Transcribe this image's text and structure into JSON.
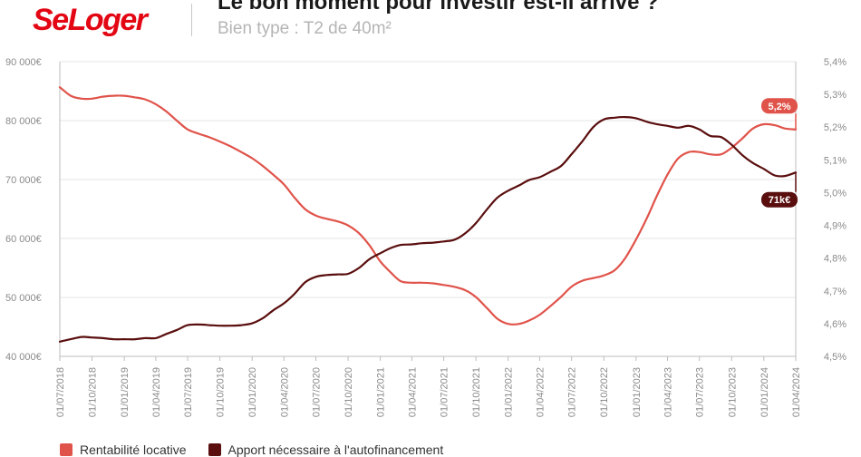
{
  "header": {
    "logo": "SeLoger",
    "title": "Le bon moment pour investir est-il arrivé ?",
    "subtitle": "Bien type : T2 de 40m²"
  },
  "chart_data": {
    "type": "line",
    "colors": {
      "left_series": "#e0534a",
      "right_series": "#5a0e0e",
      "grid": "#e6e6e6"
    },
    "y_left": {
      "range": [
        40000,
        90000
      ],
      "ticks": [
        {
          "v": 40000,
          "label": "40 000€"
        },
        {
          "v": 50000,
          "label": "50 000€"
        },
        {
          "v": 60000,
          "label": "60 000€"
        },
        {
          "v": 70000,
          "label": "70 000€"
        },
        {
          "v": 80000,
          "label": "80 000€"
        },
        {
          "v": 90000,
          "label": "90 000€"
        }
      ]
    },
    "y_right": {
      "range": [
        4.5,
        5.4
      ],
      "ticks": [
        {
          "v": 4.5,
          "label": "4,5%"
        },
        {
          "v": 4.6,
          "label": "4,6%"
        },
        {
          "v": 4.7,
          "label": "4,7%"
        },
        {
          "v": 4.8,
          "label": "4,8%"
        },
        {
          "v": 4.9,
          "label": "4,9%"
        },
        {
          "v": 5.0,
          "label": "5,0%"
        },
        {
          "v": 5.1,
          "label": "5,1%"
        },
        {
          "v": 5.2,
          "label": "5,2%"
        },
        {
          "v": 5.3,
          "label": "5,3%"
        },
        {
          "v": 5.4,
          "label": "5,4%"
        }
      ]
    },
    "x_range": [
      "2018-07-01",
      "2024-04-01"
    ],
    "x_ticks": [
      {
        "date": "2018-07-01",
        "label": "01/07/2018"
      },
      {
        "date": "2018-10-01",
        "label": "01/10/2018"
      },
      {
        "date": "2019-01-01",
        "label": "01/01/2019"
      },
      {
        "date": "2019-04-01",
        "label": "01/04/2019"
      },
      {
        "date": "2019-07-01",
        "label": "01/07/2019"
      },
      {
        "date": "2019-10-01",
        "label": "01/10/2019"
      },
      {
        "date": "2020-01-01",
        "label": "01/01/2020"
      },
      {
        "date": "2020-04-01",
        "label": "01/04/2020"
      },
      {
        "date": "2020-07-01",
        "label": "01/07/2020"
      },
      {
        "date": "2020-10-01",
        "label": "01/10/2020"
      },
      {
        "date": "2021-01-01",
        "label": "01/01/2021"
      },
      {
        "date": "2021-04-01",
        "label": "01/04/2021"
      },
      {
        "date": "2021-07-01",
        "label": "01/07/2021"
      },
      {
        "date": "2021-10-01",
        "label": "01/10/2021"
      },
      {
        "date": "2022-01-01",
        "label": "01/01/2022"
      },
      {
        "date": "2022-04-01",
        "label": "01/04/2022"
      },
      {
        "date": "2022-07-01",
        "label": "01/07/2022"
      },
      {
        "date": "2022-10-01",
        "label": "01/10/2022"
      },
      {
        "date": "2023-01-01",
        "label": "01/01/2023"
      },
      {
        "date": "2023-04-01",
        "label": "01/04/2023"
      },
      {
        "date": "2023-07-01",
        "label": "01/07/2023"
      },
      {
        "date": "2023-10-01",
        "label": "01/10/2023"
      },
      {
        "date": "2024-01-01",
        "label": "01/01/2024"
      },
      {
        "date": "2024-04-01",
        "label": "01/04/2024"
      }
    ],
    "series": [
      {
        "name": "Rentabilité locative",
        "axis": "right",
        "color": "#e0534a",
        "end_label": "5,2%",
        "points": [
          [
            "2018-07-01",
            5.322
          ],
          [
            "2018-08-01",
            5.296
          ],
          [
            "2018-09-01",
            5.287
          ],
          [
            "2018-10-01",
            5.287
          ],
          [
            "2018-11-01",
            5.293
          ],
          [
            "2018-12-01",
            5.296
          ],
          [
            "2019-01-01",
            5.296
          ],
          [
            "2019-02-01",
            5.291
          ],
          [
            "2019-03-01",
            5.285
          ],
          [
            "2019-04-01",
            5.27
          ],
          [
            "2019-05-01",
            5.248
          ],
          [
            "2019-06-01",
            5.219
          ],
          [
            "2019-07-01",
            5.193
          ],
          [
            "2019-08-01",
            5.18
          ],
          [
            "2019-09-01",
            5.169
          ],
          [
            "2019-10-01",
            5.156
          ],
          [
            "2019-11-01",
            5.141
          ],
          [
            "2019-12-01",
            5.124
          ],
          [
            "2020-01-01",
            5.105
          ],
          [
            "2020-02-01",
            5.081
          ],
          [
            "2020-03-01",
            5.055
          ],
          [
            "2020-04-01",
            5.025
          ],
          [
            "2020-05-01",
            4.985
          ],
          [
            "2020-06-01",
            4.949
          ],
          [
            "2020-07-01",
            4.93
          ],
          [
            "2020-08-01",
            4.92
          ],
          [
            "2020-09-01",
            4.912
          ],
          [
            "2020-10-01",
            4.9
          ],
          [
            "2020-11-01",
            4.876
          ],
          [
            "2020-12-01",
            4.839
          ],
          [
            "2021-01-01",
            4.79
          ],
          [
            "2021-02-01",
            4.755
          ],
          [
            "2021-03-01",
            4.729
          ],
          [
            "2021-04-01",
            4.725
          ],
          [
            "2021-05-01",
            4.725
          ],
          [
            "2021-06-01",
            4.723
          ],
          [
            "2021-07-01",
            4.718
          ],
          [
            "2021-08-01",
            4.712
          ],
          [
            "2021-09-01",
            4.702
          ],
          [
            "2021-10-01",
            4.681
          ],
          [
            "2021-11-01",
            4.648
          ],
          [
            "2021-12-01",
            4.615
          ],
          [
            "2022-01-01",
            4.599
          ],
          [
            "2022-02-01",
            4.599
          ],
          [
            "2022-03-01",
            4.609
          ],
          [
            "2022-04-01",
            4.627
          ],
          [
            "2022-05-01",
            4.653
          ],
          [
            "2022-06-01",
            4.682
          ],
          [
            "2022-07-01",
            4.713
          ],
          [
            "2022-08-01",
            4.731
          ],
          [
            "2022-09-01",
            4.739
          ],
          [
            "2022-10-01",
            4.747
          ],
          [
            "2022-11-01",
            4.763
          ],
          [
            "2022-12-01",
            4.8
          ],
          [
            "2023-01-01",
            4.857
          ],
          [
            "2023-02-01",
            4.922
          ],
          [
            "2023-03-01",
            4.989
          ],
          [
            "2023-04-01",
            5.055
          ],
          [
            "2023-05-01",
            5.104
          ],
          [
            "2023-06-01",
            5.124
          ],
          [
            "2023-07-01",
            5.124
          ],
          [
            "2023-08-01",
            5.117
          ],
          [
            "2023-09-01",
            5.117
          ],
          [
            "2023-10-01",
            5.137
          ],
          [
            "2023-11-01",
            5.166
          ],
          [
            "2023-12-01",
            5.196
          ],
          [
            "2024-01-01",
            5.209
          ],
          [
            "2024-02-01",
            5.206
          ],
          [
            "2024-03-01",
            5.196
          ],
          [
            "2024-04-01",
            5.193
          ]
        ]
      },
      {
        "name": "Apport nécessaire à l'autofinancement",
        "axis": "left",
        "color": "#5a0e0e",
        "end_label": "71k€",
        "points": [
          [
            "2018-07-01",
            42500
          ],
          [
            "2018-08-01",
            42900
          ],
          [
            "2018-09-01",
            43300
          ],
          [
            "2018-10-01",
            43200
          ],
          [
            "2018-11-01",
            43100
          ],
          [
            "2018-12-01",
            42900
          ],
          [
            "2019-01-01",
            42900
          ],
          [
            "2019-02-01",
            42900
          ],
          [
            "2019-03-01",
            43100
          ],
          [
            "2019-04-01",
            43100
          ],
          [
            "2019-05-01",
            43800
          ],
          [
            "2019-06-01",
            44500
          ],
          [
            "2019-07-01",
            45300
          ],
          [
            "2019-08-01",
            45400
          ],
          [
            "2019-09-01",
            45300
          ],
          [
            "2019-10-01",
            45200
          ],
          [
            "2019-11-01",
            45200
          ],
          [
            "2019-12-01",
            45300
          ],
          [
            "2020-01-01",
            45600
          ],
          [
            "2020-02-01",
            46500
          ],
          [
            "2020-03-01",
            47800
          ],
          [
            "2020-04-01",
            49000
          ],
          [
            "2020-05-01",
            50600
          ],
          [
            "2020-06-01",
            52600
          ],
          [
            "2020-07-01",
            53500
          ],
          [
            "2020-08-01",
            53800
          ],
          [
            "2020-09-01",
            53900
          ],
          [
            "2020-10-01",
            54000
          ],
          [
            "2020-11-01",
            55000
          ],
          [
            "2020-12-01",
            56500
          ],
          [
            "2021-01-01",
            57500
          ],
          [
            "2021-02-01",
            58400
          ],
          [
            "2021-03-01",
            58900
          ],
          [
            "2021-04-01",
            59000
          ],
          [
            "2021-05-01",
            59200
          ],
          [
            "2021-06-01",
            59300
          ],
          [
            "2021-07-01",
            59500
          ],
          [
            "2021-08-01",
            59800
          ],
          [
            "2021-09-01",
            60900
          ],
          [
            "2021-10-01",
            62600
          ],
          [
            "2021-11-01",
            64900
          ],
          [
            "2021-12-01",
            66900
          ],
          [
            "2022-01-01",
            68100
          ],
          [
            "2022-02-01",
            69000
          ],
          [
            "2022-03-01",
            69900
          ],
          [
            "2022-04-01",
            70400
          ],
          [
            "2022-05-01",
            71300
          ],
          [
            "2022-06-01",
            72300
          ],
          [
            "2022-07-01",
            74300
          ],
          [
            "2022-08-01",
            76500
          ],
          [
            "2022-09-01",
            78900
          ],
          [
            "2022-10-01",
            80200
          ],
          [
            "2022-11-01",
            80500
          ],
          [
            "2022-12-01",
            80600
          ],
          [
            "2023-01-01",
            80400
          ],
          [
            "2023-02-01",
            79800
          ],
          [
            "2023-03-01",
            79400
          ],
          [
            "2023-04-01",
            79100
          ],
          [
            "2023-05-01",
            78800
          ],
          [
            "2023-06-01",
            79100
          ],
          [
            "2023-07-01",
            78500
          ],
          [
            "2023-08-01",
            77400
          ],
          [
            "2023-09-01",
            77200
          ],
          [
            "2023-10-01",
            75900
          ],
          [
            "2023-11-01",
            74100
          ],
          [
            "2023-12-01",
            72800
          ],
          [
            "2024-01-01",
            71800
          ],
          [
            "2024-02-01",
            70700
          ],
          [
            "2024-03-01",
            70600
          ],
          [
            "2024-04-01",
            71200
          ]
        ]
      }
    ],
    "legend": [
      "Rentabilité locative",
      "Apport nécessaire à l'autofinancement"
    ],
    "legend_position": "bottom-left",
    "grid": "horizontal"
  }
}
